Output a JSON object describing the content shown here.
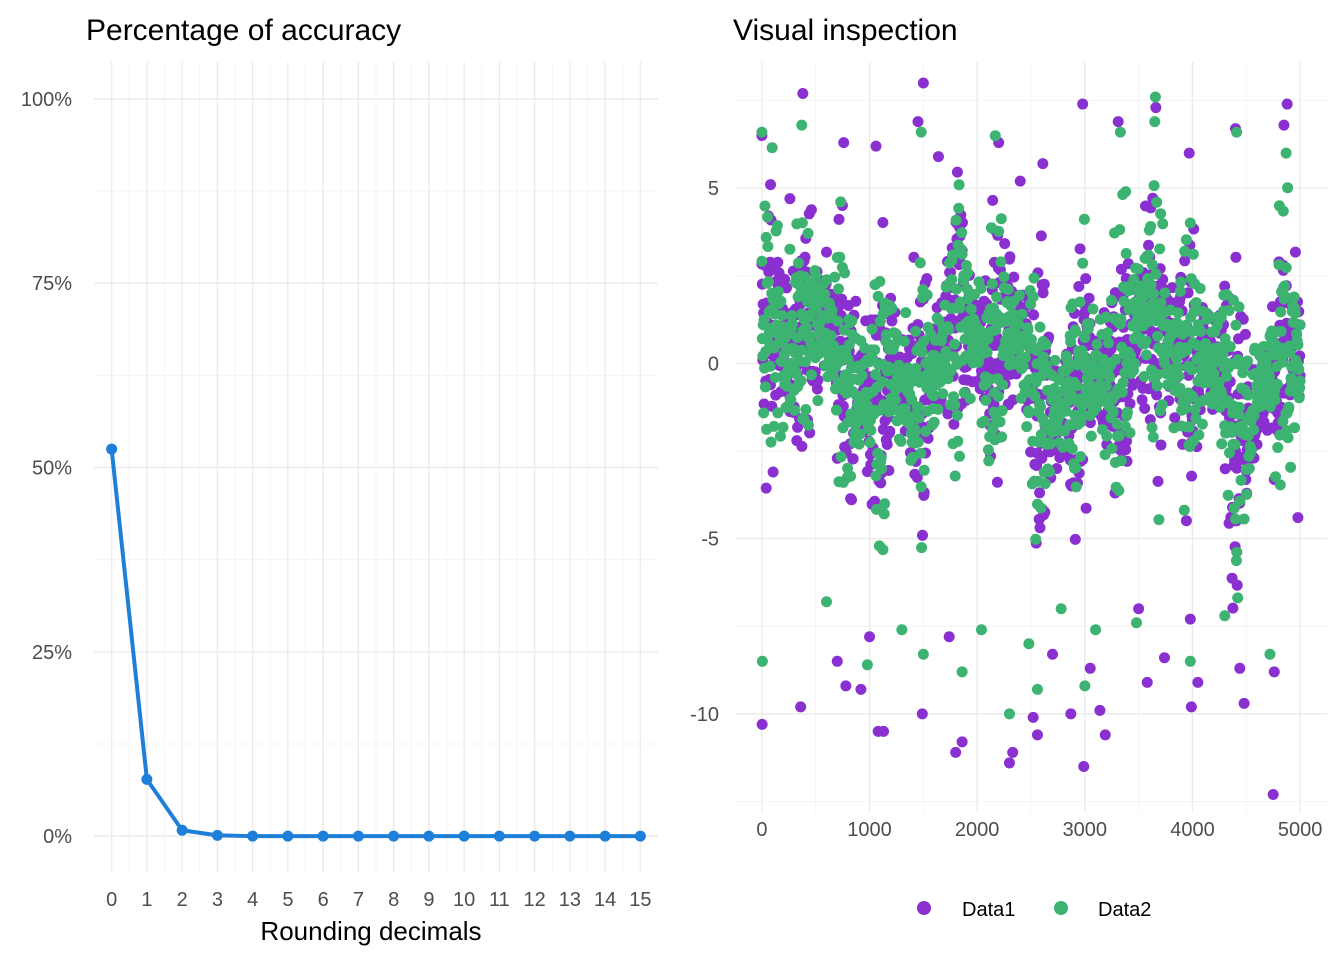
{
  "chart_data": [
    {
      "type": "line",
      "title": "Percentage of accuracy",
      "xlabel": "Rounding decimals",
      "ylabel": "",
      "x": [
        0,
        1,
        2,
        3,
        4,
        5,
        6,
        7,
        8,
        9,
        10,
        11,
        12,
        13,
        14,
        15
      ],
      "y": [
        52.5,
        7.7,
        0.8,
        0.1,
        0,
        0,
        0,
        0,
        0,
        0,
        0,
        0,
        0,
        0,
        0,
        0
      ],
      "y_unit": "%",
      "xlim": [
        -0.5,
        15.5
      ],
      "ylim": [
        -5,
        105
      ],
      "yticks": [
        "0%",
        "25%",
        "50%",
        "75%",
        "100%"
      ],
      "ytick_values": [
        0,
        25,
        50,
        75,
        100
      ],
      "xticks": [
        "0",
        "1",
        "2",
        "3",
        "4",
        "5",
        "6",
        "7",
        "8",
        "9",
        "10",
        "11",
        "12",
        "13",
        "14",
        "15"
      ],
      "color": "#1e7fd9",
      "grid": true
    },
    {
      "type": "scatter",
      "title": "Visual inspection",
      "xlabel": "",
      "ylabel": "",
      "xlim": [
        -250,
        5250
      ],
      "ylim": [
        -12.8,
        8.6
      ],
      "xticks": [
        "0",
        "1000",
        "2000",
        "3000",
        "4000",
        "5000"
      ],
      "xtick_values": [
        0,
        1000,
        2000,
        3000,
        4000,
        5000
      ],
      "yticks": [
        "-10",
        "-5",
        "0",
        "5"
      ],
      "ytick_values": [
        -10,
        -5,
        0,
        5
      ],
      "n_points": 5000,
      "legend_position": "bottom",
      "series": [
        {
          "name": "Data1",
          "color": "#8a2fd0",
          "points": [
            [
              0,
              6.5
            ],
            [
              2,
              -10.3
            ],
            [
              80,
              5.1
            ],
            [
              260,
              4.7
            ],
            [
              360,
              -9.8
            ],
            [
              380,
              7.7
            ],
            [
              700,
              -8.5
            ],
            [
              760,
              6.3
            ],
            [
              780,
              -9.2
            ],
            [
              920,
              -9.3
            ],
            [
              1000,
              -7.8
            ],
            [
              1060,
              6.2
            ],
            [
              1080,
              -10.5
            ],
            [
              1130,
              -10.5
            ],
            [
              1450,
              6.9
            ],
            [
              1500,
              8.0
            ],
            [
              1490,
              -10.0
            ],
            [
              1640,
              5.9
            ],
            [
              1740,
              -7.8
            ],
            [
              1800,
              -11.1
            ],
            [
              1860,
              -10.8
            ],
            [
              2200,
              6.3
            ],
            [
              2300,
              -11.4
            ],
            [
              2330,
              -11.1
            ],
            [
              2400,
              5.2
            ],
            [
              2520,
              -10.1
            ],
            [
              2560,
              -10.6
            ],
            [
              2610,
              5.7
            ],
            [
              2700,
              -8.3
            ],
            [
              2870,
              -10.0
            ],
            [
              2980,
              7.4
            ],
            [
              2990,
              -11.5
            ],
            [
              3050,
              -8.7
            ],
            [
              3140,
              -9.9
            ],
            [
              3190,
              -10.6
            ],
            [
              3310,
              6.9
            ],
            [
              3500,
              -7.0
            ],
            [
              3580,
              -9.1
            ],
            [
              3660,
              7.3
            ],
            [
              3740,
              -8.4
            ],
            [
              3970,
              6.0
            ],
            [
              3990,
              -9.8
            ],
            [
              4050,
              -9.1
            ],
            [
              4400,
              6.7
            ],
            [
              4440,
              -8.7
            ],
            [
              4480,
              -9.7
            ],
            [
              4750,
              -12.3
            ],
            [
              4760,
              -8.8
            ],
            [
              4850,
              6.8
            ],
            [
              4880,
              7.4
            ],
            [
              4980,
              -4.4
            ],
            [
              5000,
              1.1
            ]
          ]
        },
        {
          "name": "Data2",
          "color": "#3cb371",
          "points": [
            [
              0,
              6.6
            ],
            [
              4,
              -8.5
            ],
            [
              370,
              6.8
            ],
            [
              600,
              -6.8
            ],
            [
              980,
              -8.6
            ],
            [
              1300,
              -7.6
            ],
            [
              1480,
              6.6
            ],
            [
              1500,
              -8.3
            ],
            [
              1860,
              -8.8
            ],
            [
              2040,
              -7.6
            ],
            [
              2300,
              -10.0
            ],
            [
              2480,
              -8.0
            ],
            [
              2560,
              -9.3
            ],
            [
              2780,
              -7.0
            ],
            [
              3000,
              -9.2
            ],
            [
              3100,
              -7.6
            ],
            [
              3330,
              6.6
            ],
            [
              3480,
              -7.4
            ],
            [
              3650,
              6.9
            ],
            [
              3980,
              -8.5
            ],
            [
              4300,
              -7.2
            ],
            [
              4410,
              6.6
            ],
            [
              4720,
              -8.3
            ],
            [
              4870,
              6.0
            ],
            [
              5000,
              -0.5
            ]
          ]
        }
      ]
    }
  ]
}
